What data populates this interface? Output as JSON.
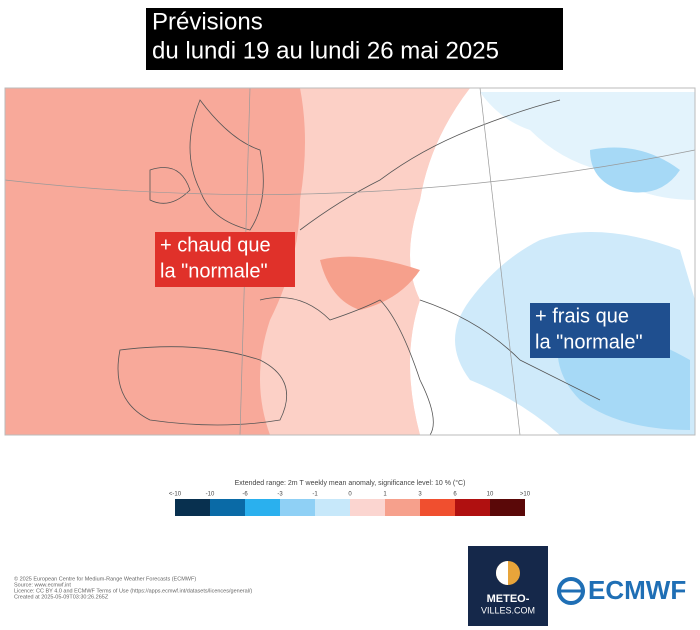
{
  "title": {
    "line1": "Prévisions",
    "line2": "du lundi 19 au lundi 26 mai 2025"
  },
  "annotations": {
    "warm": [
      "+ chaud que",
      "la \"normale\""
    ],
    "cool": [
      "+ frais que",
      "la \"normale\""
    ]
  },
  "colorbar": {
    "caption": "Extended range: 2m T weekly mean anomaly, significance level: 10 % (°C)",
    "ticks": [
      "<-10",
      "-10",
      "-6",
      "-3",
      "-1",
      "0",
      "1",
      "3",
      "6",
      "10",
      ">10"
    ],
    "colors": [
      "#08304f",
      "#0a6aa6",
      "#2ab0ee",
      "#8fd0f5",
      "#c7e8fa",
      "#fbd5d0",
      "#f6a08c",
      "#f04f2f",
      "#b01010",
      "#5a0808"
    ]
  },
  "footer": [
    "© 2025 European Centre for Medium-Range Weather Forecasts (ECMWF)",
    "Source: www.ecmwf.int",
    "Licence: CC BY 4.0 and ECMWF Terms of Use (https://apps.ecmwf.int/datasets/licences/general/)",
    "Created at 2025-05-09T03:30:26.265Z"
  ],
  "logos": {
    "meteo": [
      "METEO-",
      "VILLES.COM"
    ],
    "ecmwf": "ECMWF"
  }
}
